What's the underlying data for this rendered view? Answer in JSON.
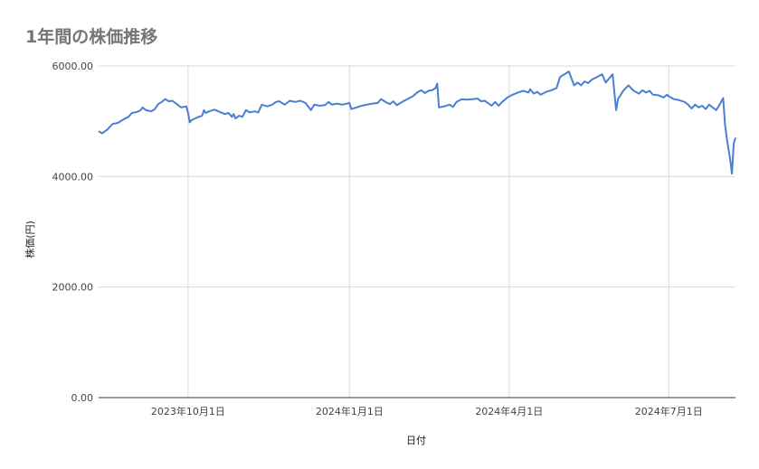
{
  "chart_data": {
    "type": "line",
    "title": "1年間の株価推移",
    "xlabel": "日付",
    "ylabel": "株価(円)",
    "ylim": [
      0,
      6000
    ],
    "y_ticks": [
      {
        "value": 0,
        "label": "0.00"
      },
      {
        "value": 2000,
        "label": "2000.00"
      },
      {
        "value": 4000,
        "label": "4000.00"
      },
      {
        "value": 6000,
        "label": "6000.00"
      }
    ],
    "xlim": [
      "2023-08-11",
      "2024-08-08"
    ],
    "x_ticks": [
      {
        "date": "2023-10-01",
        "label": "2023年10月1日"
      },
      {
        "date": "2024-01-01",
        "label": "2024年1月1日"
      },
      {
        "date": "2024-04-01",
        "label": "2024年4月1日"
      },
      {
        "date": "2024-07-01",
        "label": "2024年7月1日"
      }
    ],
    "grid": true,
    "line_color": "#4a7fd1",
    "series": [
      {
        "points": [
          [
            "2023-08-11",
            4820
          ],
          [
            "2023-08-13",
            4780
          ],
          [
            "2023-08-16",
            4850
          ],
          [
            "2023-08-19",
            4950
          ],
          [
            "2023-08-22",
            4970
          ],
          [
            "2023-08-25",
            5030
          ],
          [
            "2023-08-28",
            5080
          ],
          [
            "2023-08-30",
            5150
          ],
          [
            "2023-09-02",
            5170
          ],
          [
            "2023-09-04",
            5200
          ],
          [
            "2023-09-05",
            5250
          ],
          [
            "2023-09-07",
            5200
          ],
          [
            "2023-09-10",
            5180
          ],
          [
            "2023-09-12",
            5220
          ],
          [
            "2023-09-14",
            5310
          ],
          [
            "2023-09-16",
            5350
          ],
          [
            "2023-09-18",
            5400
          ],
          [
            "2023-09-20",
            5360
          ],
          [
            "2023-09-22",
            5370
          ],
          [
            "2023-09-25",
            5300
          ],
          [
            "2023-09-27",
            5250
          ],
          [
            "2023-09-30",
            5270
          ],
          [
            "2023-10-01",
            5150
          ],
          [
            "2023-10-02",
            4980
          ],
          [
            "2023-10-03",
            5020
          ],
          [
            "2023-10-05",
            5050
          ],
          [
            "2023-10-07",
            5080
          ],
          [
            "2023-10-09",
            5100
          ],
          [
            "2023-10-10",
            5200
          ],
          [
            "2023-10-11",
            5150
          ],
          [
            "2023-10-13",
            5180
          ],
          [
            "2023-10-16",
            5210
          ],
          [
            "2023-10-19",
            5170
          ],
          [
            "2023-10-22",
            5130
          ],
          [
            "2023-10-24",
            5150
          ],
          [
            "2023-10-26",
            5080
          ],
          [
            "2023-10-27",
            5130
          ],
          [
            "2023-10-28",
            5050
          ],
          [
            "2023-10-30",
            5100
          ],
          [
            "2023-11-01",
            5080
          ],
          [
            "2023-11-03",
            5200
          ],
          [
            "2023-11-05",
            5160
          ],
          [
            "2023-11-08",
            5180
          ],
          [
            "2023-11-10",
            5160
          ],
          [
            "2023-11-12",
            5300
          ],
          [
            "2023-11-15",
            5270
          ],
          [
            "2023-11-18",
            5300
          ],
          [
            "2023-11-20",
            5350
          ],
          [
            "2023-11-22",
            5360
          ],
          [
            "2023-11-25",
            5300
          ],
          [
            "2023-11-28",
            5370
          ],
          [
            "2023-12-01",
            5350
          ],
          [
            "2023-12-04",
            5370
          ],
          [
            "2023-12-07",
            5330
          ],
          [
            "2023-12-10",
            5200
          ],
          [
            "2023-12-12",
            5300
          ],
          [
            "2023-12-15",
            5280
          ],
          [
            "2023-12-18",
            5290
          ],
          [
            "2023-12-20",
            5350
          ],
          [
            "2023-12-22",
            5300
          ],
          [
            "2023-12-25",
            5320
          ],
          [
            "2023-12-28",
            5300
          ],
          [
            "2024-01-01",
            5330
          ],
          [
            "2024-01-02",
            5220
          ],
          [
            "2024-01-05",
            5250
          ],
          [
            "2024-01-08",
            5280
          ],
          [
            "2024-01-11",
            5300
          ],
          [
            "2024-01-14",
            5320
          ],
          [
            "2024-01-17",
            5330
          ],
          [
            "2024-01-19",
            5400
          ],
          [
            "2024-01-22",
            5340
          ],
          [
            "2024-01-24",
            5310
          ],
          [
            "2024-01-26",
            5360
          ],
          [
            "2024-01-28",
            5290
          ],
          [
            "2024-01-31",
            5350
          ],
          [
            "2024-02-03",
            5400
          ],
          [
            "2024-02-06",
            5450
          ],
          [
            "2024-02-09",
            5530
          ],
          [
            "2024-02-11",
            5560
          ],
          [
            "2024-02-13",
            5510
          ],
          [
            "2024-02-15",
            5550
          ],
          [
            "2024-02-17",
            5560
          ],
          [
            "2024-02-19",
            5600
          ],
          [
            "2024-02-20",
            5680
          ],
          [
            "2024-02-21",
            5250
          ],
          [
            "2024-02-24",
            5270
          ],
          [
            "2024-02-27",
            5300
          ],
          [
            "2024-02-29",
            5260
          ],
          [
            "2024-03-02",
            5350
          ],
          [
            "2024-03-05",
            5400
          ],
          [
            "2024-03-08",
            5390
          ],
          [
            "2024-03-11",
            5400
          ],
          [
            "2024-03-14",
            5410
          ],
          [
            "2024-03-16",
            5360
          ],
          [
            "2024-03-18",
            5370
          ],
          [
            "2024-03-20",
            5330
          ],
          [
            "2024-03-22",
            5280
          ],
          [
            "2024-03-24",
            5350
          ],
          [
            "2024-03-26",
            5280
          ],
          [
            "2024-03-28",
            5350
          ],
          [
            "2024-03-31",
            5430
          ],
          [
            "2024-04-03",
            5480
          ],
          [
            "2024-04-06",
            5520
          ],
          [
            "2024-04-09",
            5550
          ],
          [
            "2024-04-12",
            5520
          ],
          [
            "2024-04-13",
            5580
          ],
          [
            "2024-04-15",
            5500
          ],
          [
            "2024-04-17",
            5530
          ],
          [
            "2024-04-19",
            5480
          ],
          [
            "2024-04-22",
            5530
          ],
          [
            "2024-04-25",
            5560
          ],
          [
            "2024-04-28",
            5600
          ],
          [
            "2024-04-30",
            5800
          ],
          [
            "2024-05-03",
            5860
          ],
          [
            "2024-05-05",
            5900
          ],
          [
            "2024-05-08",
            5650
          ],
          [
            "2024-05-10",
            5700
          ],
          [
            "2024-05-12",
            5650
          ],
          [
            "2024-05-14",
            5720
          ],
          [
            "2024-05-16",
            5690
          ],
          [
            "2024-05-18",
            5750
          ],
          [
            "2024-05-21",
            5800
          ],
          [
            "2024-05-24",
            5850
          ],
          [
            "2024-05-26",
            5700
          ],
          [
            "2024-05-30",
            5850
          ],
          [
            "2024-06-01",
            5200
          ],
          [
            "2024-06-02",
            5400
          ],
          [
            "2024-06-05",
            5550
          ],
          [
            "2024-06-08",
            5650
          ],
          [
            "2024-06-11",
            5550
          ],
          [
            "2024-06-14",
            5500
          ],
          [
            "2024-06-16",
            5560
          ],
          [
            "2024-06-18",
            5520
          ],
          [
            "2024-06-20",
            5550
          ],
          [
            "2024-06-22",
            5480
          ],
          [
            "2024-06-25",
            5470
          ],
          [
            "2024-06-28",
            5430
          ],
          [
            "2024-06-30",
            5480
          ],
          [
            "2024-07-01",
            5450
          ],
          [
            "2024-07-04",
            5400
          ],
          [
            "2024-07-07",
            5380
          ],
          [
            "2024-07-10",
            5350
          ],
          [
            "2024-07-12",
            5300
          ],
          [
            "2024-07-14",
            5230
          ],
          [
            "2024-07-16",
            5300
          ],
          [
            "2024-07-18",
            5250
          ],
          [
            "2024-07-20",
            5280
          ],
          [
            "2024-07-22",
            5220
          ],
          [
            "2024-07-24",
            5300
          ],
          [
            "2024-07-26",
            5250
          ],
          [
            "2024-07-28",
            5200
          ],
          [
            "2024-07-30",
            5300
          ],
          [
            "2024-08-01",
            5420
          ],
          [
            "2024-08-02",
            4950
          ],
          [
            "2024-08-03",
            4700
          ],
          [
            "2024-08-05",
            4300
          ],
          [
            "2024-08-06",
            4050
          ],
          [
            "2024-08-07",
            4600
          ],
          [
            "2024-08-08",
            4700
          ]
        ]
      }
    ]
  }
}
